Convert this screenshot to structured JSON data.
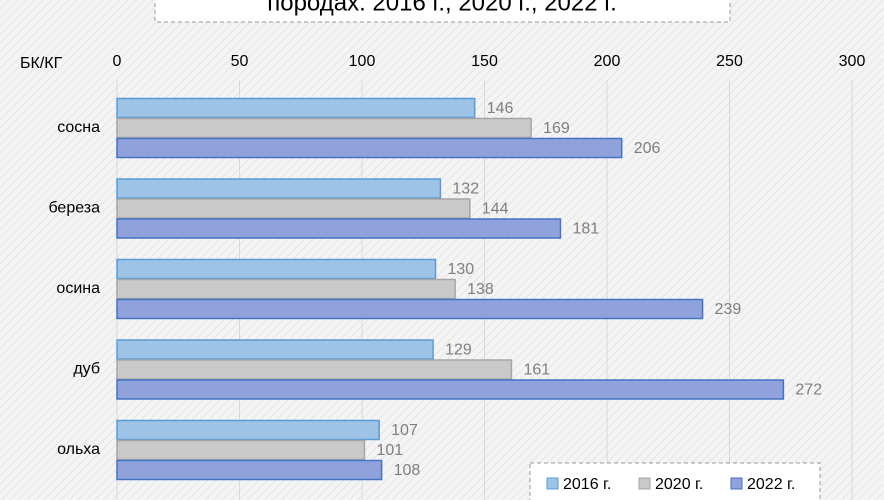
{
  "chart_data": {
    "type": "hbar",
    "title": "породах. 2016 г., 2020 г., 2022 г.",
    "axis_label": "БК/КГ",
    "categories": [
      "сосна",
      "береза",
      "осина",
      "дуб",
      "ольха"
    ],
    "series": [
      {
        "name": "2016 г.",
        "color": "#9dc3e6",
        "values": [
          146,
          132,
          130,
          129,
          107
        ]
      },
      {
        "name": "2020 г.",
        "color": "#c9c9c9",
        "values": [
          169,
          144,
          138,
          161,
          101
        ]
      },
      {
        "name": "2022 г.",
        "color": "#8fa2dc",
        "values": [
          206,
          181,
          239,
          272,
          108
        ]
      }
    ],
    "xlim": [
      0,
      300
    ],
    "xticks": [
      0,
      50,
      100,
      150,
      200,
      250,
      300
    ],
    "grid": true
  }
}
